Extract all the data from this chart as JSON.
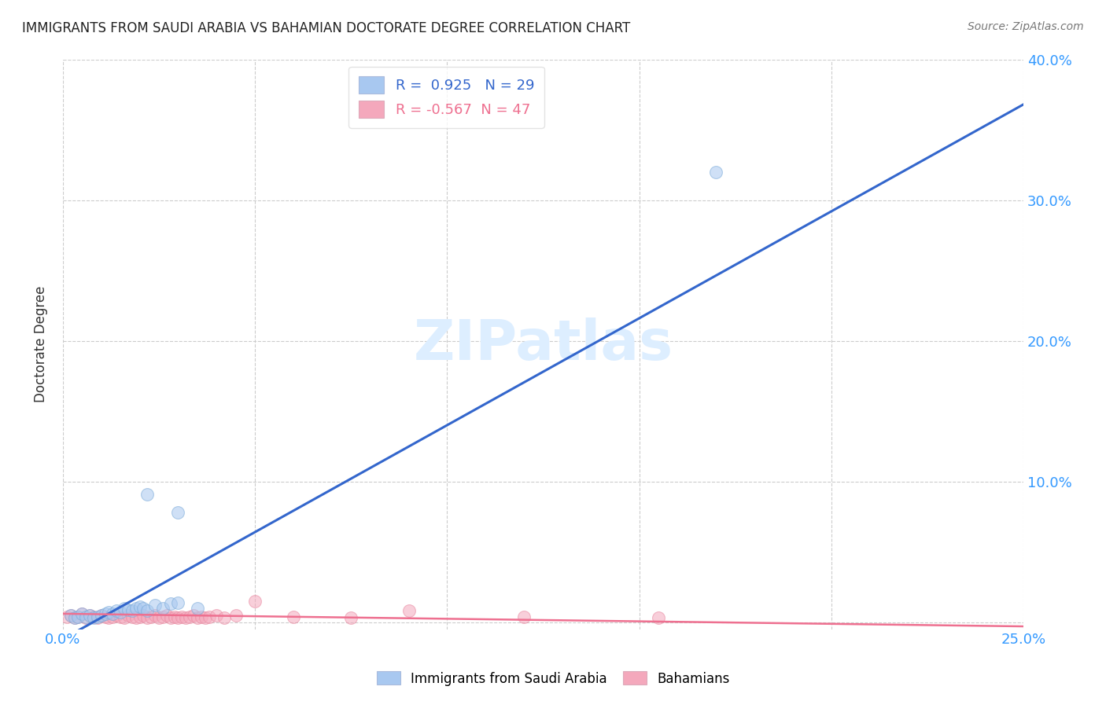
{
  "title": "IMMIGRANTS FROM SAUDI ARABIA VS BAHAMIAN DOCTORATE DEGREE CORRELATION CHART",
  "source": "Source: ZipAtlas.com",
  "ylabel": "Doctorate Degree",
  "xlim": [
    0.0,
    0.25
  ],
  "ylim": [
    -0.005,
    0.4
  ],
  "xticks": [
    0.0,
    0.05,
    0.1,
    0.15,
    0.2,
    0.25
  ],
  "xtick_labels": [
    "0.0%",
    "",
    "",
    "",
    "",
    "25.0%"
  ],
  "ytick_labels_right": [
    "",
    "10.0%",
    "20.0%",
    "30.0%",
    "40.0%"
  ],
  "yticks_right": [
    0.0,
    0.1,
    0.2,
    0.3,
    0.4
  ],
  "blue_R": 0.925,
  "blue_N": 29,
  "pink_R": -0.567,
  "pink_N": 47,
  "blue_color": "#A8C8F0",
  "pink_color": "#F4A8BC",
  "blue_edge_color": "#7AAAD8",
  "pink_edge_color": "#E888A0",
  "blue_line_color": "#3366CC",
  "pink_line_color": "#EE7090",
  "watermark": "ZIPatlas",
  "watermark_color": "#DDEEFF",
  "background_color": "#FFFFFF",
  "blue_scatter_x": [
    0.002,
    0.003,
    0.004,
    0.005,
    0.006,
    0.007,
    0.008,
    0.009,
    0.01,
    0.011,
    0.012,
    0.013,
    0.014,
    0.015,
    0.016,
    0.017,
    0.018,
    0.019,
    0.02,
    0.021,
    0.022,
    0.024,
    0.026,
    0.028,
    0.03,
    0.035,
    0.022,
    0.03,
    0.17
  ],
  "blue_scatter_y": [
    0.005,
    0.003,
    0.004,
    0.006,
    0.004,
    0.005,
    0.003,
    0.004,
    0.005,
    0.006,
    0.007,
    0.006,
    0.008,
    0.007,
    0.01,
    0.009,
    0.008,
    0.01,
    0.011,
    0.01,
    0.008,
    0.012,
    0.01,
    0.013,
    0.014,
    0.01,
    0.091,
    0.078,
    0.32
  ],
  "pink_scatter_x": [
    0.001,
    0.002,
    0.003,
    0.004,
    0.005,
    0.006,
    0.007,
    0.008,
    0.009,
    0.01,
    0.011,
    0.012,
    0.013,
    0.014,
    0.015,
    0.016,
    0.017,
    0.018,
    0.019,
    0.02,
    0.021,
    0.022,
    0.023,
    0.024,
    0.025,
    0.026,
    0.027,
    0.028,
    0.029,
    0.03,
    0.031,
    0.032,
    0.033,
    0.034,
    0.035,
    0.036,
    0.037,
    0.038,
    0.04,
    0.042,
    0.045,
    0.05,
    0.06,
    0.075,
    0.09,
    0.12,
    0.155
  ],
  "pink_scatter_y": [
    0.004,
    0.005,
    0.003,
    0.004,
    0.006,
    0.003,
    0.005,
    0.004,
    0.003,
    0.005,
    0.004,
    0.003,
    0.004,
    0.005,
    0.004,
    0.003,
    0.005,
    0.004,
    0.003,
    0.004,
    0.005,
    0.003,
    0.004,
    0.005,
    0.003,
    0.004,
    0.005,
    0.003,
    0.004,
    0.003,
    0.004,
    0.003,
    0.004,
    0.005,
    0.003,
    0.004,
    0.003,
    0.004,
    0.005,
    0.003,
    0.005,
    0.015,
    0.004,
    0.003,
    0.008,
    0.004,
    0.003
  ],
  "blue_line_x": [
    0.0,
    0.25
  ],
  "blue_line_y": [
    -0.012,
    0.368
  ],
  "pink_line_x": [
    0.0,
    0.25
  ],
  "pink_line_y": [
    0.006,
    -0.003
  ]
}
